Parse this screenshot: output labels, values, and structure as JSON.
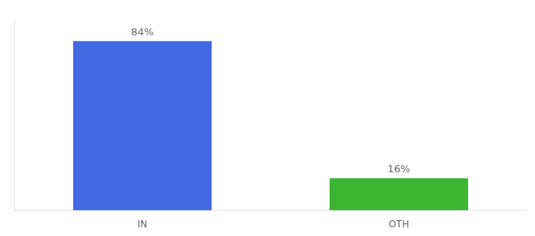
{
  "chart_data": {
    "type": "bar",
    "categories": [
      "IN",
      "OTH"
    ],
    "values": [
      84,
      16
    ],
    "colors": [
      "#4169e1",
      "#3cb533"
    ],
    "value_labels": [
      "84%",
      "16%"
    ],
    "data_labels": true,
    "ylim": [
      0,
      95
    ],
    "tick_labels": "x",
    "grid": false
  }
}
